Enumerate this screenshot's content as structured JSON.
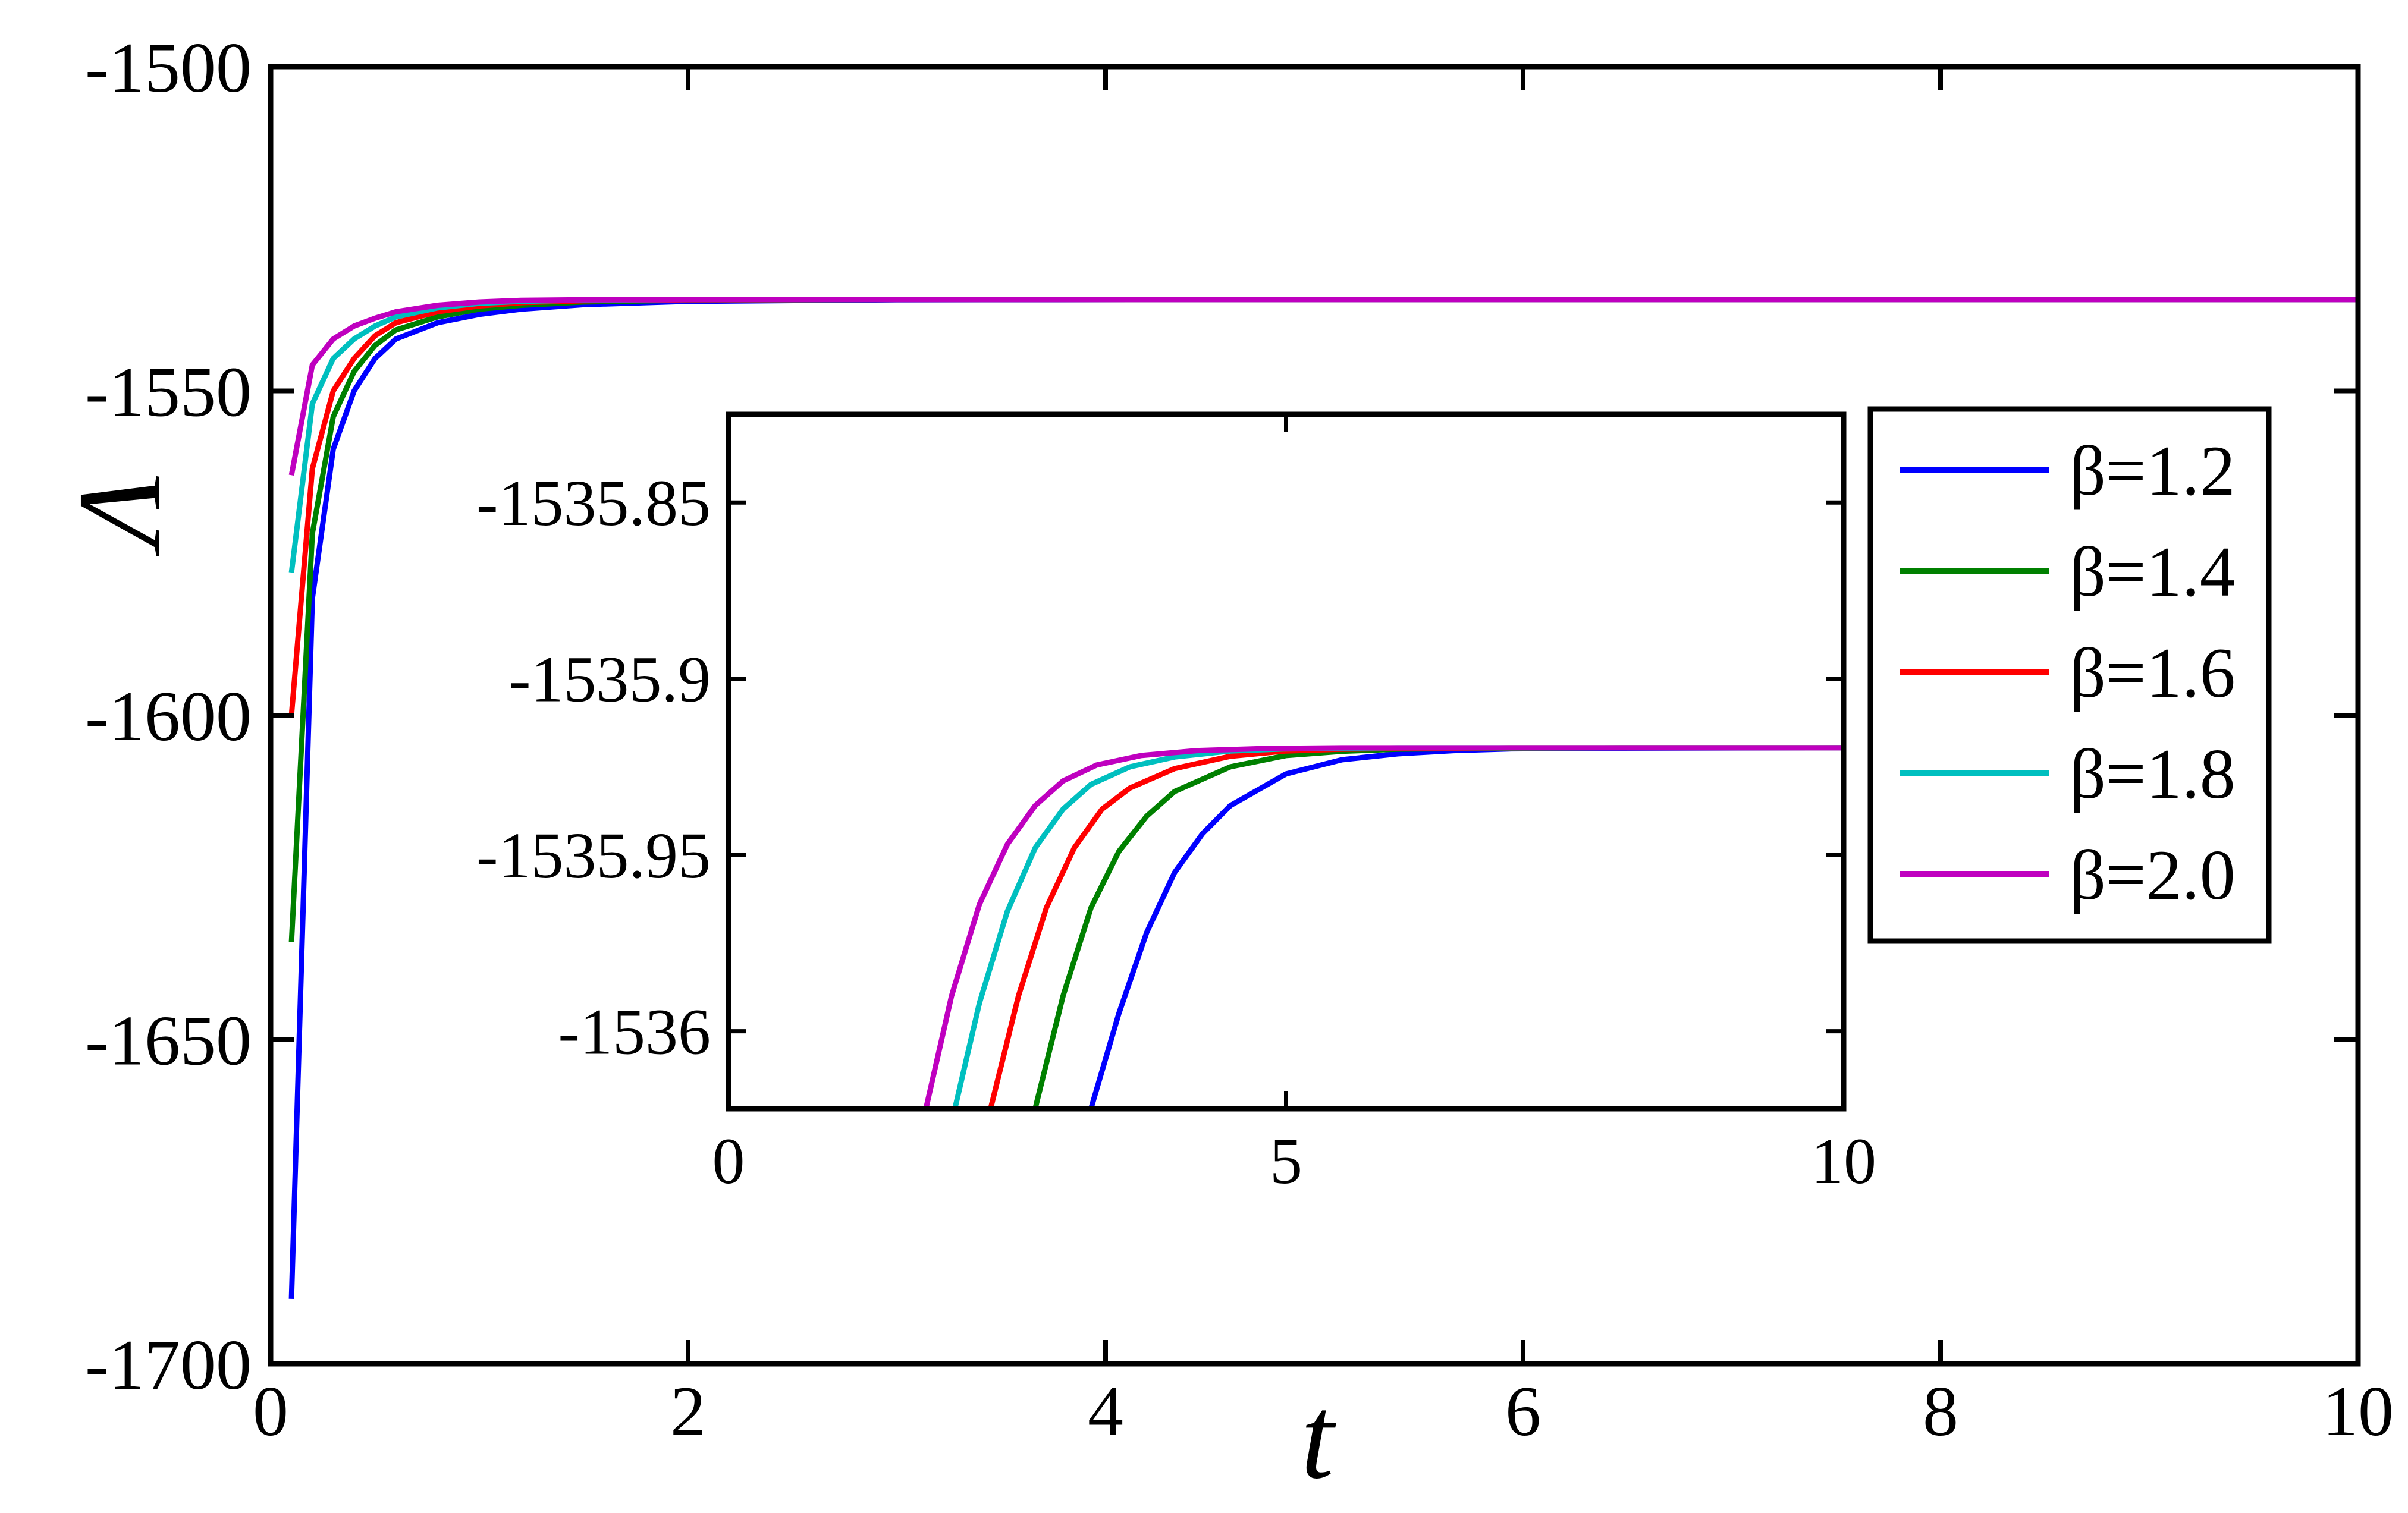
{
  "chart_data": [
    {
      "type": "line",
      "role": "main",
      "xlabel": "t",
      "ylabel": "Λ",
      "xlim": [
        0,
        10
      ],
      "ylim": [
        -1700,
        -1500
      ],
      "x_ticks": [
        0,
        2,
        4,
        6,
        8,
        10
      ],
      "y_ticks": [
        -1700,
        -1650,
        -1600,
        -1550,
        -1500
      ],
      "x_tick_labels": [
        "0",
        "2",
        "4",
        "6",
        "8",
        "10"
      ],
      "y_tick_labels": [
        "-1700",
        "-1650",
        "-1600",
        "-1550",
        "-1500"
      ],
      "grid": false,
      "legend_position": "right, inside plot area",
      "series": [
        {
          "name": "β=1.2",
          "color": "#0000ff",
          "x": [
            0.1,
            0.2,
            0.3,
            0.4,
            0.5,
            0.6,
            0.8,
            1.0,
            1.2,
            1.5,
            2.0,
            3.0,
            5.0,
            10.0
          ],
          "y": [
            -1690,
            -1582,
            -1559,
            -1550,
            -1545,
            -1542,
            -1539.5,
            -1538.2,
            -1537.4,
            -1536.7,
            -1536.2,
            -1535.95,
            -1535.92,
            -1535.92
          ]
        },
        {
          "name": "β=1.4",
          "color": "#008000",
          "x": [
            0.1,
            0.2,
            0.3,
            0.4,
            0.5,
            0.6,
            0.8,
            1.0,
            1.2,
            1.5,
            2.0,
            3.0,
            5.0,
            10.0
          ],
          "y": [
            -1635,
            -1572,
            -1554,
            -1547,
            -1543,
            -1540.6,
            -1538.6,
            -1537.4,
            -1536.8,
            -1536.3,
            -1536.0,
            -1535.93,
            -1535.92,
            -1535.92
          ]
        },
        {
          "name": "β=1.6",
          "color": "#ff0000",
          "x": [
            0.1,
            0.2,
            0.3,
            0.4,
            0.5,
            0.6,
            0.8,
            1.0,
            1.2,
            1.5,
            2.0,
            3.0,
            5.0,
            10.0
          ],
          "y": [
            -1600,
            -1562,
            -1550,
            -1545,
            -1541.5,
            -1539.5,
            -1537.8,
            -1536.9,
            -1536.4,
            -1536.1,
            -1535.95,
            -1535.92,
            -1535.92,
            -1535.92
          ]
        },
        {
          "name": "β=1.8",
          "color": "#00bfbf",
          "x": [
            0.1,
            0.2,
            0.3,
            0.4,
            0.5,
            0.6,
            0.8,
            1.0,
            1.2,
            1.5,
            2.0,
            3.0,
            5.0,
            10.0
          ],
          "y": [
            -1578,
            -1552,
            -1545,
            -1542,
            -1540,
            -1538.6,
            -1537.2,
            -1536.5,
            -1536.2,
            -1536.0,
            -1535.93,
            -1535.92,
            -1535.92,
            -1535.92
          ]
        },
        {
          "name": "β=2.0",
          "color": "#bf00bf",
          "x": [
            0.1,
            0.2,
            0.3,
            0.4,
            0.5,
            0.6,
            0.8,
            1.0,
            1.2,
            1.5,
            2.0,
            3.0,
            5.0,
            10.0
          ],
          "y": [
            -1563,
            -1546,
            -1542,
            -1540,
            -1538.8,
            -1537.8,
            -1536.8,
            -1536.3,
            -1536.05,
            -1535.96,
            -1535.93,
            -1535.92,
            -1535.92,
            -1535.92
          ]
        }
      ]
    },
    {
      "type": "line",
      "role": "inset",
      "xlim": [
        0,
        10
      ],
      "ylim": [
        -1536.022,
        -1535.825
      ],
      "x_ticks": [
        0,
        5,
        10
      ],
      "y_ticks": [
        -1535.85,
        -1535.9,
        -1535.95,
        -1536
      ],
      "x_tick_labels": [
        "0",
        "5",
        "10"
      ],
      "y_tick_labels": [
        "-1535.85",
        "-1535.9",
        "-1535.95",
        "-1536"
      ],
      "asymptote": -1535.9196,
      "grid": false,
      "series": [
        {
          "name": "β=1.2",
          "color": "#0000ff",
          "x": [
            3.25,
            3.5,
            3.75,
            4.0,
            4.25,
            4.5,
            5.0,
            5.5,
            6.0,
            6.5,
            7.0,
            8.0,
            10.0
          ],
          "y": [
            -1536.022,
            -1535.995,
            -1535.972,
            -1535.955,
            -1535.944,
            -1535.936,
            -1535.927,
            -1535.923,
            -1535.9213,
            -1535.9204,
            -1535.9199,
            -1535.9197,
            -1535.9196
          ]
        },
        {
          "name": "β=1.4",
          "color": "#008000",
          "x": [
            2.75,
            3.0,
            3.25,
            3.5,
            3.75,
            4.0,
            4.5,
            5.0,
            5.5,
            6.0,
            7.0,
            8.0,
            10.0
          ],
          "y": [
            -1536.022,
            -1535.99,
            -1535.965,
            -1535.949,
            -1535.939,
            -1535.932,
            -1535.925,
            -1535.9218,
            -1535.9206,
            -1535.92,
            -1535.9197,
            -1535.9196,
            -1535.9196
          ]
        },
        {
          "name": "β=1.6",
          "color": "#ff0000",
          "x": [
            2.35,
            2.6,
            2.85,
            3.1,
            3.35,
            3.6,
            4.0,
            4.5,
            5.0,
            5.5,
            6.0,
            7.0,
            10.0
          ],
          "y": [
            -1536.022,
            -1535.99,
            -1535.965,
            -1535.948,
            -1535.937,
            -1535.931,
            -1535.9255,
            -1535.922,
            -1535.9205,
            -1535.92,
            -1535.9198,
            -1535.9196,
            -1535.9196
          ]
        },
        {
          "name": "β=1.8",
          "color": "#00bfbf",
          "x": [
            2.03,
            2.25,
            2.5,
            2.75,
            3.0,
            3.25,
            3.6,
            4.0,
            4.5,
            5.0,
            6.0,
            7.0,
            10.0
          ],
          "y": [
            -1536.022,
            -1535.992,
            -1535.966,
            -1535.948,
            -1535.937,
            -1535.93,
            -1535.925,
            -1535.9222,
            -1535.9205,
            -1535.9199,
            -1535.9196,
            -1535.9196,
            -1535.9196
          ]
        },
        {
          "name": "β=2.0",
          "color": "#bf00bf",
          "x": [
            1.77,
            2.0,
            2.25,
            2.5,
            2.75,
            3.0,
            3.3,
            3.7,
            4.2,
            4.8,
            5.5,
            7.0,
            10.0
          ],
          "y": [
            -1536.022,
            -1535.99,
            -1535.964,
            -1535.947,
            -1535.936,
            -1535.929,
            -1535.9245,
            -1535.9218,
            -1535.9204,
            -1535.9198,
            -1535.9196,
            -1535.9196,
            -1535.9196
          ]
        }
      ]
    }
  ]
}
